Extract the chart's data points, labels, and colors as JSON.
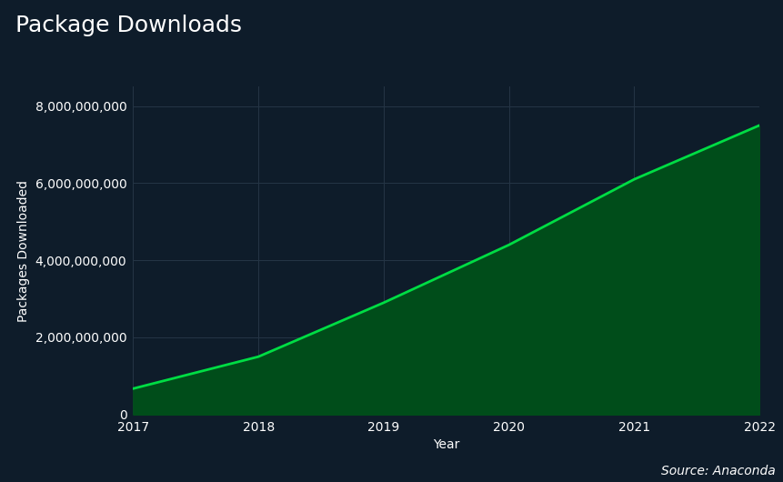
{
  "title": "Package Downloads",
  "xlabel": "Year",
  "ylabel": "Packages Downloaded",
  "source_text": "Source: Anaconda",
  "years": [
    2017,
    2018,
    2019,
    2020,
    2021,
    2022
  ],
  "values": [
    672000000,
    1500000000,
    2900000000,
    4400000000,
    6100000000,
    7500000000
  ],
  "line_color": "#00dd44",
  "fill_color": "#004d1a",
  "background_color": "#0e1c2a",
  "axes_bg_color": "#0e1c2a",
  "grid_color": "#253545",
  "text_color": "#ffffff",
  "title_fontsize": 18,
  "label_fontsize": 10,
  "tick_fontsize": 10,
  "source_fontsize": 10,
  "ylim": [
    0,
    8500000000
  ],
  "yticks": [
    0,
    2000000000,
    4000000000,
    6000000000,
    8000000000
  ]
}
